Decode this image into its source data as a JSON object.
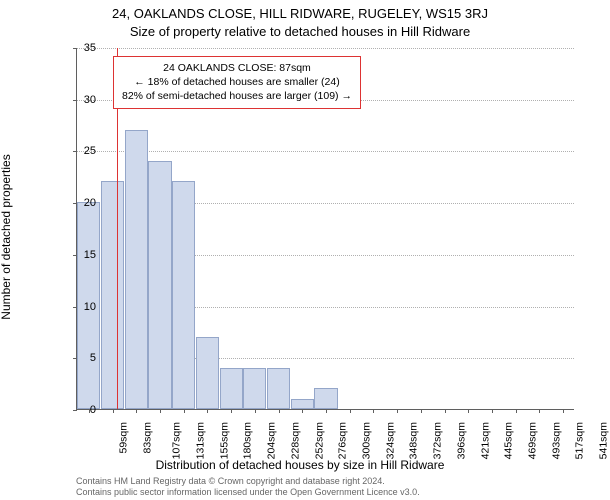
{
  "suptitle": "24, OAKLANDS CLOSE, HILL RIDWARE, RUGELEY, WS15 3RJ",
  "title": "Size of property relative to detached houses in Hill Ridware",
  "ylabel": "Number of detached properties",
  "xlabel": "Distribution of detached houses by size in Hill Ridware",
  "chart": {
    "type": "bar",
    "ylim": [
      0,
      35
    ],
    "yticks": [
      0,
      5,
      10,
      15,
      20,
      25,
      30,
      35
    ],
    "xtick_labels": [
      "59sqm",
      "83sqm",
      "107sqm",
      "131sqm",
      "155sqm",
      "180sqm",
      "204sqm",
      "228sqm",
      "252sqm",
      "276sqm",
      "300sqm",
      "324sqm",
      "348sqm",
      "372sqm",
      "396sqm",
      "421sqm",
      "445sqm",
      "469sqm",
      "493sqm",
      "517sqm",
      "541sqm"
    ],
    "bars": [
      20,
      22,
      27,
      24,
      22,
      7,
      4,
      4,
      4,
      1,
      2,
      0,
      0,
      0,
      0,
      0,
      0,
      0,
      0,
      0,
      0
    ],
    "bar_color": "#cfd9ec",
    "bar_border": "#94a6c9",
    "grid_color": "#b0b0b0",
    "marker_color": "#d33",
    "marker_position_sqm": 87,
    "annotation": {
      "line1": "24 OAKLANDS CLOSE: 87sqm",
      "line2": "← 18% of detached houses are smaller (24)",
      "line3": "82% of semi-detached houses are larger (109) →"
    }
  },
  "footer": {
    "line1": "Contains HM Land Registry data © Crown copyright and database right 2024.",
    "line2": "Contains public sector information licensed under the Open Government Licence v3.0."
  }
}
